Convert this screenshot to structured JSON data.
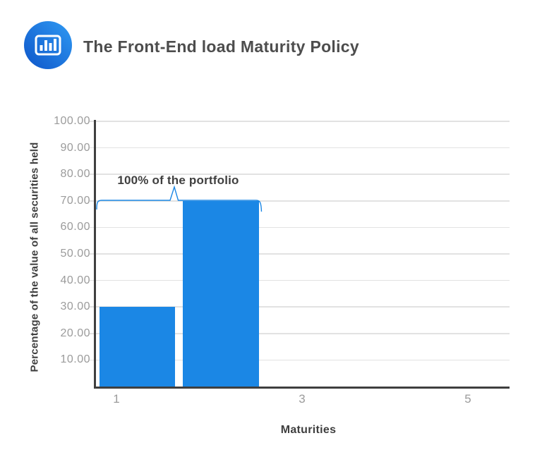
{
  "header": {
    "title": "The Front-End load Maturity Policy"
  },
  "chart_data": {
    "type": "bar",
    "title": "The Front-End load Maturity Policy",
    "xlabel": "Maturities",
    "ylabel": "Percentage of the value of all securities held",
    "bars": [
      {
        "maturity": 1,
        "value": 30
      },
      {
        "maturity": 2,
        "value": 70
      }
    ],
    "x_ticks": [
      "1",
      "3",
      "5"
    ],
    "y_ticks": [
      100,
      90,
      80,
      70,
      60,
      50,
      40,
      30,
      20,
      10
    ],
    "y_tick_labels": [
      "100.00",
      "90.00",
      "80.00",
      "70.00",
      "60.00",
      "50.00",
      "40.00",
      "30.00",
      "20.00",
      "10.00"
    ],
    "ylim": [
      0,
      100
    ],
    "grid": true,
    "legend": "none",
    "annotation": {
      "text": "100% of the portfolio"
    },
    "colors": {
      "bar": "#1b87e5",
      "grid": "#e2e2e2",
      "axis": "#3f3f3f",
      "tick_label": "#9b9b9b",
      "label_text": "#3f3f3f",
      "title_text": "#4d4d4d",
      "logo_gradient_start": "#2f9af3",
      "logo_gradient_end": "#0e55c9"
    }
  }
}
